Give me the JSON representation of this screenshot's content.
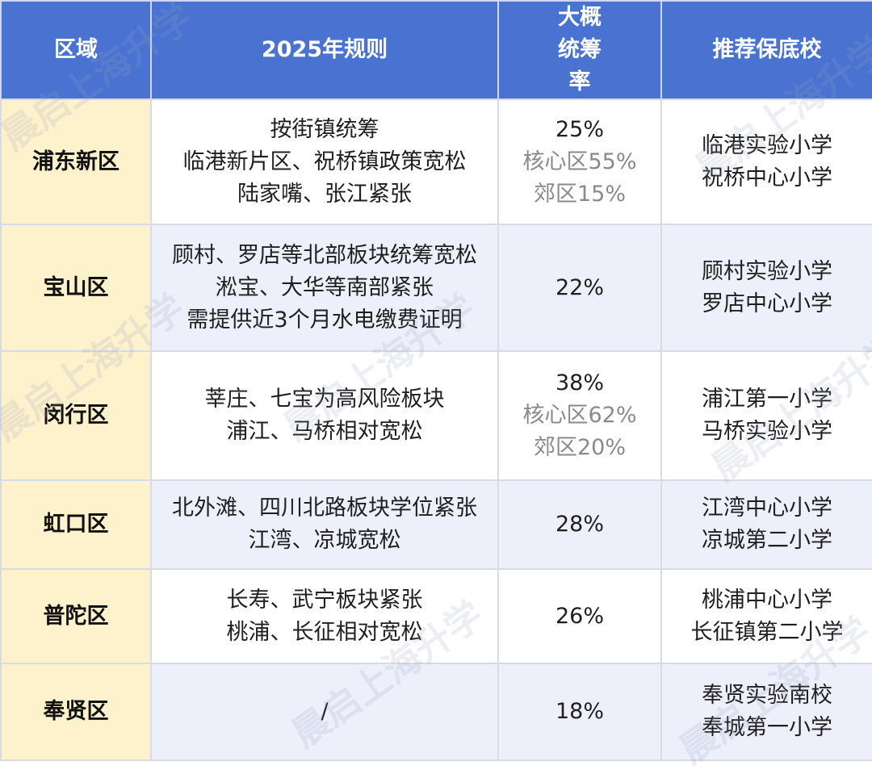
{
  "headers": [
    "区域",
    "2025年规则",
    "大概统筹率",
    "推荐保底校"
  ],
  "rows": [
    {
      "district": "浦东新区",
      "rules": [
        "按街镇统筹",
        "临港新片区、祝桥镇政策宽松",
        "陆家嘴、张江紧张"
      ],
      "rate": "25%",
      "rate_sub": [
        "核心区55%",
        "郊区15%"
      ],
      "schools": [
        "临港实验小学",
        "祝桥中心小学"
      ]
    },
    {
      "district": "宝山区",
      "rules": [
        "顾村、罗店等北部板块统筹宽松",
        "淞宝、大华等南部紧张",
        "需提供近3个月水电缴费证明"
      ],
      "rate": "22%",
      "rate_sub": [],
      "schools": [
        "顾村实验小学",
        "罗店中心小学"
      ]
    },
    {
      "district": "闵行区",
      "rules": [
        "莘庄、七宝为高风险板块",
        "浦江、马桥相对宽松"
      ],
      "rate": "38%",
      "rate_sub": [
        "核心区62%",
        "郊区20%"
      ],
      "schools": [
        "浦江第一小学",
        "马桥实验小学"
      ]
    },
    {
      "district": "虹口区",
      "rules": [
        "北外滩、四川北路板块学位紧张",
        "江湾、凉城宽松"
      ],
      "rate": "28%",
      "rate_sub": [],
      "schools": [
        "江湾中心小学",
        "凉城第二小学"
      ]
    },
    {
      "district": "普陀区",
      "rules": [
        "长寿、武宁板块紧张",
        "桃浦、长征相对宽松"
      ],
      "rate": "26%",
      "rate_sub": [],
      "schools": [
        "桃浦中心小学",
        "长征镇第二小学"
      ]
    },
    {
      "district": "奉贤区",
      "rules": [
        "/"
      ],
      "rate": "18%",
      "rate_sub": [],
      "schools": [
        "奉贤实验南校",
        "奉城第一小学"
      ]
    }
  ],
  "watermark": "晨启上海升学"
}
